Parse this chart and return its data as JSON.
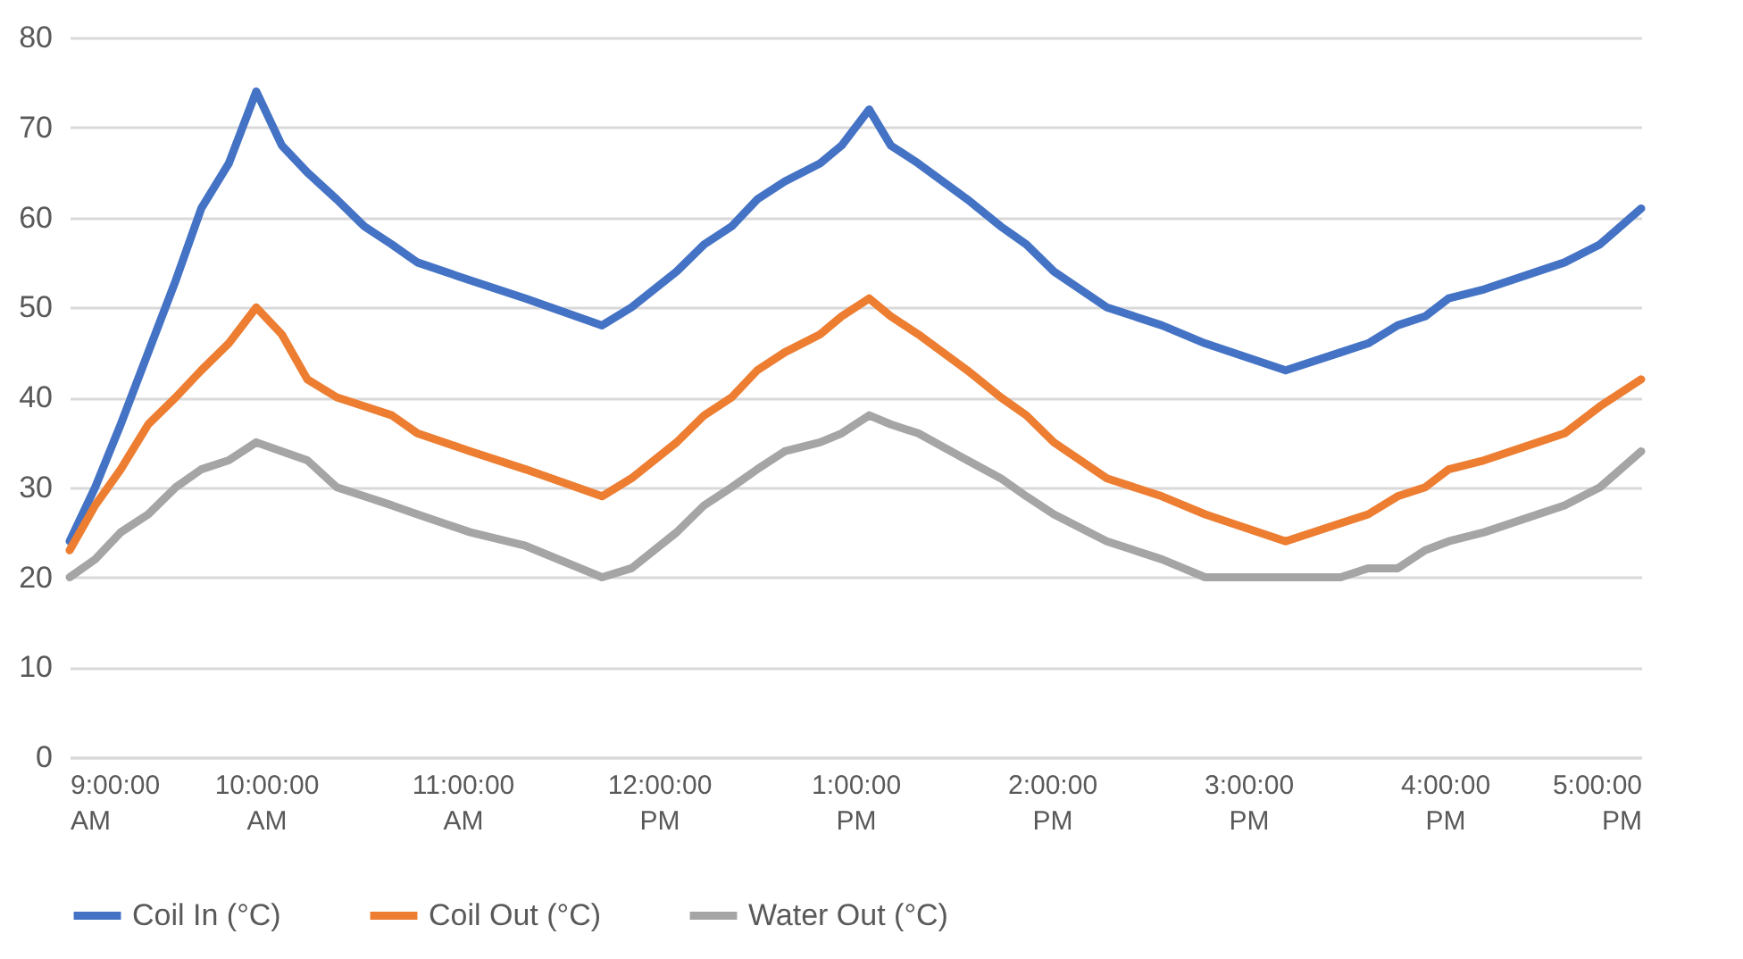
{
  "chart_data": {
    "type": "line",
    "x": [
      9.0,
      9.13,
      9.26,
      9.4,
      9.54,
      9.67,
      9.81,
      9.95,
      10.08,
      10.21,
      10.36,
      10.5,
      10.64,
      10.77,
      11.04,
      11.32,
      11.71,
      11.86,
      12.09,
      12.23,
      12.37,
      12.5,
      12.64,
      12.82,
      12.93,
      13.07,
      13.18,
      13.32,
      13.57,
      13.74,
      13.87,
      14.01,
      14.28,
      14.56,
      14.78,
      15.19,
      15.47,
      15.61,
      15.76,
      15.9,
      16.02,
      16.2,
      16.61,
      16.79,
      17.0
    ],
    "series": [
      {
        "name": "Coil In (°C)",
        "color": "#4472c4",
        "values": [
          24,
          30,
          37,
          45,
          53,
          61,
          66,
          74,
          68,
          65,
          62,
          59,
          57,
          55,
          53,
          51,
          48,
          50,
          54,
          57,
          59,
          62,
          64,
          66,
          68,
          72,
          68,
          66,
          62,
          59,
          57,
          54,
          50,
          48,
          46,
          43,
          45,
          46,
          48,
          49,
          51,
          52,
          55,
          57,
          61
        ]
      },
      {
        "name": "Coil Out (°C)",
        "color": "#ed7d31",
        "values": [
          23,
          28,
          32,
          37,
          40,
          43,
          46,
          50,
          47,
          42,
          40,
          39,
          38,
          36,
          34,
          32,
          29,
          31,
          35,
          38,
          40,
          43,
          45,
          47,
          49,
          51,
          49,
          47,
          43,
          40,
          38,
          35,
          31,
          29,
          27,
          24,
          26,
          27,
          29,
          30,
          32,
          33,
          36,
          39,
          42
        ]
      },
      {
        "name": "Water Out (°C)",
        "color": "#a5a5a5",
        "values": [
          20,
          22,
          25,
          27,
          30,
          32,
          33,
          35,
          34,
          33,
          30,
          29,
          28,
          27,
          25,
          23.5,
          20,
          21,
          25,
          28,
          30,
          32,
          34,
          35,
          36,
          38,
          37,
          36,
          33,
          31,
          29,
          27,
          24,
          22,
          20,
          20,
          20,
          21,
          21,
          23,
          24,
          25,
          28,
          30,
          34
        ]
      }
    ],
    "xlim": [
      9,
      17
    ],
    "xticks": [
      {
        "value": 9,
        "label": "9:00:00 AM"
      },
      {
        "value": 10,
        "label": "10:00:00 AM"
      },
      {
        "value": 11,
        "label": "11:00:00 AM"
      },
      {
        "value": 12,
        "label": "12:00:00 PM"
      },
      {
        "value": 13,
        "label": "1:00:00 PM"
      },
      {
        "value": 14,
        "label": "2:00:00 PM"
      },
      {
        "value": 15,
        "label": "3:00:00 PM"
      },
      {
        "value": 16,
        "label": "4:00:00 PM"
      },
      {
        "value": 17,
        "label": "5:00:00 PM"
      }
    ],
    "ylim": [
      0,
      80
    ],
    "yticks": [
      0,
      10,
      20,
      30,
      40,
      50,
      60,
      70,
      80
    ],
    "grid": "y",
    "legend": "bottom",
    "marker": "none",
    "line_style": "solid"
  }
}
